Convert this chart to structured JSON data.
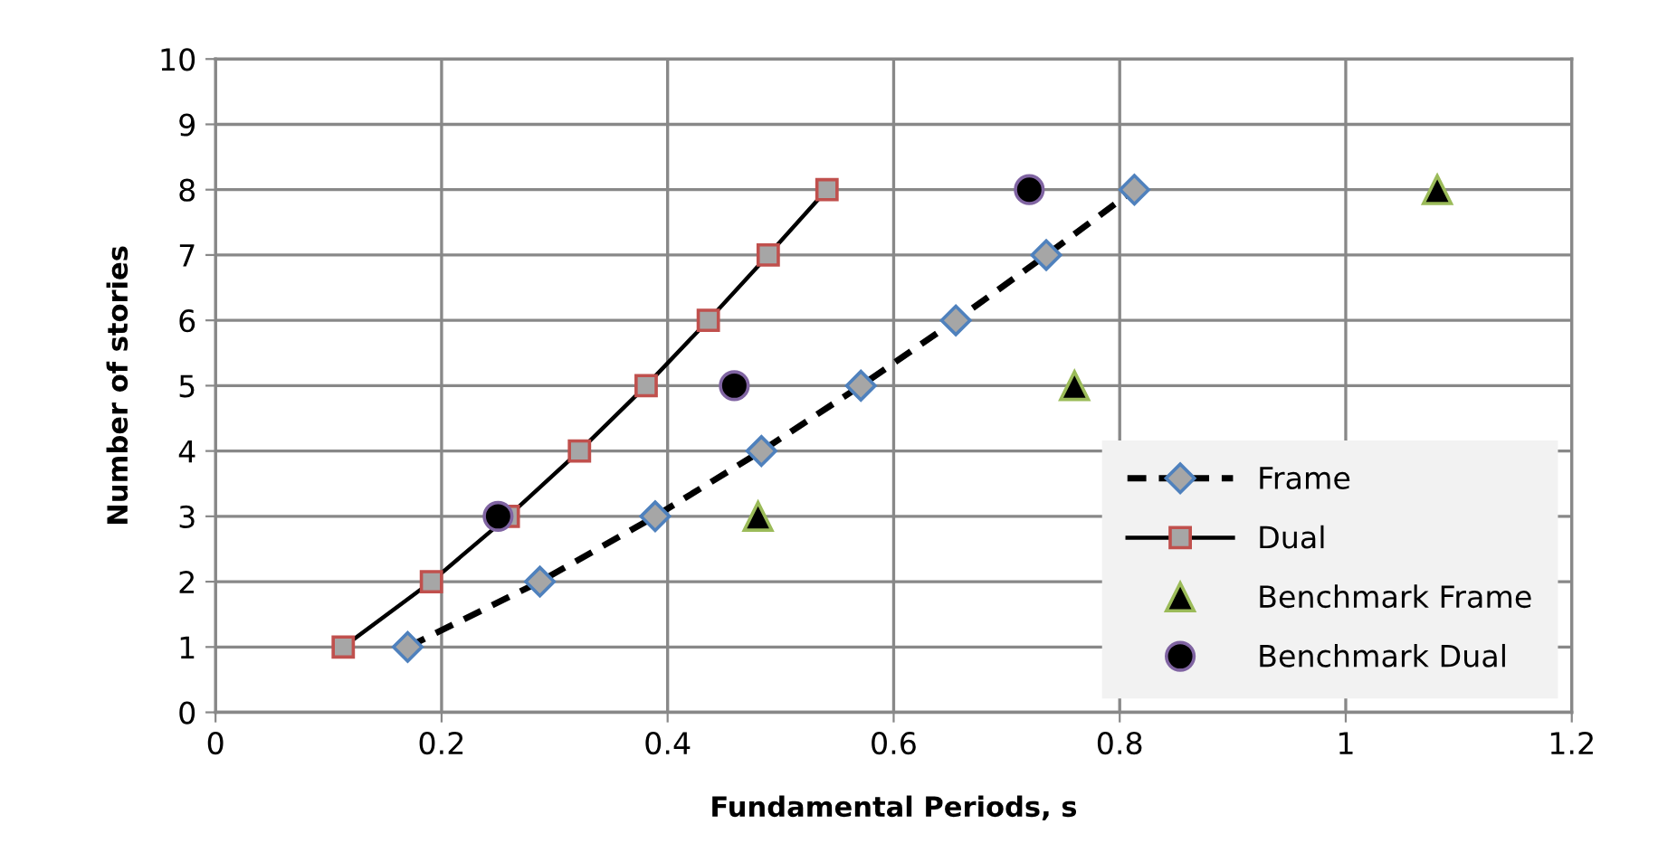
{
  "chart_data": {
    "type": "line",
    "xlabel": "Fundamental Periods, s",
    "ylabel": "Number of stories",
    "xlim": [
      0,
      1.2
    ],
    "xticks": [
      0,
      0.2,
      0.4,
      0.6,
      0.8,
      1,
      1.2
    ],
    "ylim": [
      0,
      10
    ],
    "yticks": [
      0,
      1,
      2,
      3,
      4,
      5,
      6,
      7,
      8,
      9,
      10
    ],
    "grid": true,
    "legend": "bottom right",
    "series": [
      {
        "name": "Frame",
        "color": "#a6a6a6",
        "marker": "diamond",
        "line_style": "dashed",
        "x": [
          0.17,
          0.287,
          0.389,
          0.483,
          0.571,
          0.655,
          0.735,
          0.813
        ],
        "values": [
          1,
          2,
          3,
          4,
          5,
          6,
          7,
          8
        ]
      },
      {
        "name": "Dual",
        "color": "#a6a6a6",
        "marker": "square",
        "line_style": "solid",
        "x": [
          0.113,
          0.191,
          0.259,
          0.322,
          0.381,
          0.436,
          0.489,
          0.541
        ],
        "values": [
          1,
          2,
          3,
          4,
          5,
          6,
          7,
          8
        ]
      },
      {
        "name": "Benchmark Frame",
        "type": "scatter",
        "color": "#000000",
        "marker": "triangle",
        "x": [
          0.48,
          0.76,
          1.081
        ],
        "values": [
          3,
          5,
          8
        ]
      },
      {
        "name": "Benchmark Dual",
        "type": "scatter",
        "color": "#000000",
        "marker": "circle",
        "x": [
          0.25,
          0.459,
          0.72
        ],
        "values": [
          3,
          5,
          8
        ]
      }
    ]
  }
}
